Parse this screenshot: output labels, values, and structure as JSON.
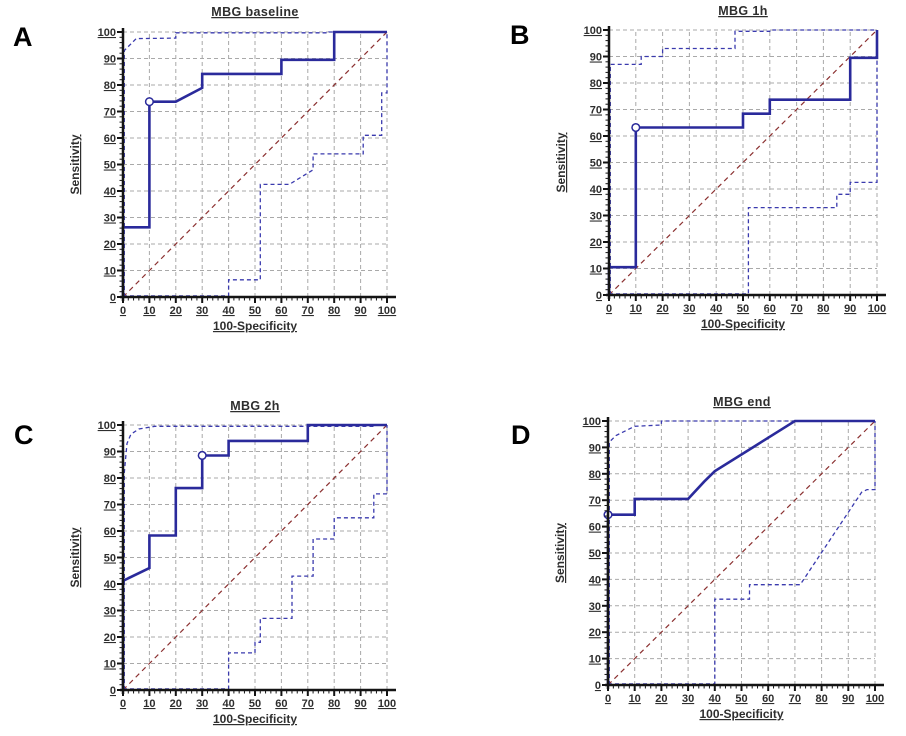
{
  "figure": {
    "type": "roc-curve-grid",
    "description": "Four ROC curve panels with 95% confidence bands and chance diagonal",
    "panel_letters": [
      "A",
      "B",
      "C",
      "D"
    ]
  },
  "axes": {
    "x_label": "100-Specificity",
    "y_label": "Sensitivity",
    "min": 0,
    "max": 100,
    "major_step": 10,
    "minor_step": 2,
    "tick_labels": [
      "0",
      "10",
      "20",
      "30",
      "40",
      "50",
      "60",
      "70",
      "80",
      "90",
      "100"
    ]
  },
  "palette": {
    "roc_curve": "#2A2A9B",
    "confidence_band": "#3A3AAE",
    "reference_line": "#8B3030",
    "grid_line": "#A9A9A9",
    "axis_line": "#141414",
    "text": "#2E2E2E",
    "marker_fill": "#FFFFFF"
  },
  "chart_data": [
    {
      "type": "line",
      "panel_label": "A",
      "title": "MBG baseline",
      "xlabel": "100-Specificity",
      "ylabel": "Sensitivity",
      "xlim": [
        0,
        100
      ],
      "ylim": [
        0,
        100
      ],
      "grid": true,
      "legend": "none",
      "series": [
        {
          "name": "Reference diagonal",
          "style": "dashed-red",
          "points": [
            [
              0,
              0
            ],
            [
              100,
              100
            ]
          ]
        },
        {
          "name": "95% CI upper bound",
          "style": "dashed",
          "points": [
            [
              0.5,
              0
            ],
            [
              0.5,
              93
            ],
            [
              5,
              97.5
            ],
            [
              20,
              97.7
            ],
            [
              20,
              99.7
            ],
            [
              78,
              99.7
            ],
            [
              78,
              100
            ],
            [
              100,
              100
            ]
          ]
        },
        {
          "name": "95% CI lower bound",
          "style": "dashed",
          "points": [
            [
              0,
              0.4
            ],
            [
              40,
              0.4
            ],
            [
              40,
              6.5
            ],
            [
              52,
              6.5
            ],
            [
              52,
              42.5
            ],
            [
              63,
              42.5
            ],
            [
              72,
              48
            ],
            [
              72,
              54
            ],
            [
              91,
              54
            ],
            [
              91,
              61
            ],
            [
              98,
              61
            ],
            [
              98,
              77
            ],
            [
              100,
              77
            ],
            [
              100,
              100
            ]
          ]
        },
        {
          "name": "ROC curve",
          "style": "solid",
          "points": [
            [
              0,
              0
            ],
            [
              0,
              26.3
            ],
            [
              10,
              26.3
            ],
            [
              10,
              73.7
            ],
            [
              20,
              73.7
            ],
            [
              30,
              78.9
            ],
            [
              30,
              84.2
            ],
            [
              60,
              84.2
            ],
            [
              60,
              89.5
            ],
            [
              80,
              89.5
            ],
            [
              80,
              100
            ],
            [
              100,
              100
            ]
          ]
        }
      ],
      "operating_point": [
        10,
        73.7
      ]
    },
    {
      "type": "line",
      "panel_label": "B",
      "title": "MBG 1h",
      "xlabel": "100-Specificity",
      "ylabel": "Sensitivity",
      "xlim": [
        0,
        100
      ],
      "ylim": [
        0,
        100
      ],
      "grid": true,
      "legend": "none",
      "series": [
        {
          "name": "Reference diagonal",
          "style": "dashed-red",
          "points": [
            [
              0,
              0
            ],
            [
              100,
              100
            ]
          ]
        },
        {
          "name": "95% CI upper bound",
          "style": "dashed",
          "points": [
            [
              0.5,
              0
            ],
            [
              0.5,
              87
            ],
            [
              12,
              87
            ],
            [
              12,
              90
            ],
            [
              20,
              90
            ],
            [
              20,
              93
            ],
            [
              47,
              93
            ],
            [
              47,
              99.5
            ],
            [
              60,
              99.5
            ],
            [
              60,
              100
            ],
            [
              100,
              100
            ]
          ]
        },
        {
          "name": "95% CI lower bound",
          "style": "dashed",
          "points": [
            [
              0,
              0.4
            ],
            [
              52,
              0.4
            ],
            [
              52,
              33
            ],
            [
              85,
              33
            ],
            [
              85,
              38
            ],
            [
              90,
              38
            ],
            [
              90,
              42.5
            ],
            [
              100,
              42.5
            ],
            [
              100,
              100
            ]
          ]
        },
        {
          "name": "ROC curve",
          "style": "solid",
          "points": [
            [
              0,
              0
            ],
            [
              0,
              10.5
            ],
            [
              10,
              10.5
            ],
            [
              10,
              63.2
            ],
            [
              50,
              63.2
            ],
            [
              50,
              68.4
            ],
            [
              60,
              68.4
            ],
            [
              60,
              73.7
            ],
            [
              90,
              73.7
            ],
            [
              90,
              89.5
            ],
            [
              100,
              89.5
            ],
            [
              100,
              100
            ]
          ]
        }
      ],
      "operating_point": [
        10,
        63.2
      ]
    },
    {
      "type": "line",
      "panel_label": "C",
      "title": "MBG 2h",
      "xlabel": "100-Specificity",
      "ylabel": "Sensitivity",
      "xlim": [
        0,
        100
      ],
      "ylim": [
        0,
        100
      ],
      "grid": true,
      "legend": "none",
      "series": [
        {
          "name": "Reference diagonal",
          "style": "dashed-red",
          "points": [
            [
              0,
              0
            ],
            [
              100,
              100
            ]
          ]
        },
        {
          "name": "95% CI upper bound",
          "style": "dashed",
          "points": [
            [
              0.5,
              0
            ],
            [
              0.5,
              82
            ],
            [
              1.5,
              93
            ],
            [
              3,
              96.5
            ],
            [
              6,
              98.5
            ],
            [
              12,
              99.5
            ],
            [
              95,
              99.5
            ],
            [
              95,
              100
            ],
            [
              100,
              100
            ]
          ]
        },
        {
          "name": "95% CI lower bound",
          "style": "dashed",
          "points": [
            [
              0,
              0.4
            ],
            [
              40,
              0.4
            ],
            [
              40,
              14
            ],
            [
              50,
              14
            ],
            [
              50,
              18
            ],
            [
              52,
              18
            ],
            [
              52,
              27
            ],
            [
              64,
              27
            ],
            [
              64,
              43
            ],
            [
              72,
              43
            ],
            [
              72,
              57
            ],
            [
              80,
              57
            ],
            [
              80,
              65
            ],
            [
              95,
              65
            ],
            [
              95,
              74
            ],
            [
              100,
              74
            ],
            [
              100,
              100
            ]
          ]
        },
        {
          "name": "ROC curve",
          "style": "solid",
          "points": [
            [
              0,
              0
            ],
            [
              0,
              41.2
            ],
            [
              10,
              46
            ],
            [
              10,
              58.3
            ],
            [
              20,
              58.3
            ],
            [
              20,
              76.2
            ],
            [
              30,
              76.2
            ],
            [
              30,
              88.5
            ],
            [
              40,
              88.5
            ],
            [
              40,
              94
            ],
            [
              70,
              94
            ],
            [
              70,
              100
            ],
            [
              100,
              100
            ]
          ]
        }
      ],
      "operating_point": [
        30,
        88.5
      ]
    },
    {
      "type": "line",
      "panel_label": "D",
      "title": "MBG end",
      "xlabel": "100-Specificity",
      "ylabel": "Sensitivity",
      "xlim": [
        0,
        100
      ],
      "ylim": [
        0,
        100
      ],
      "grid": true,
      "legend": "none",
      "series": [
        {
          "name": "Reference diagonal",
          "style": "dashed-red",
          "points": [
            [
              0,
              0
            ],
            [
              100,
              100
            ]
          ]
        },
        {
          "name": "95% CI upper bound",
          "style": "dashed",
          "points": [
            [
              0.5,
              0
            ],
            [
              0.5,
              92
            ],
            [
              3,
              94.5
            ],
            [
              10,
              98
            ],
            [
              20,
              98.5
            ],
            [
              20,
              100
            ],
            [
              100,
              100
            ]
          ]
        },
        {
          "name": "95% CI lower bound",
          "style": "dashed",
          "points": [
            [
              0,
              0.4
            ],
            [
              40,
              0.4
            ],
            [
              40,
              32.5
            ],
            [
              53,
              32.5
            ],
            [
              53,
              38
            ],
            [
              72,
              38
            ],
            [
              95,
              73
            ],
            [
              97,
              74
            ],
            [
              100,
              74
            ],
            [
              100,
              100
            ]
          ]
        },
        {
          "name": "ROC curve",
          "style": "solid",
          "points": [
            [
              0,
              0
            ],
            [
              0,
              64.5
            ],
            [
              10,
              64.5
            ],
            [
              10,
              70.5
            ],
            [
              30,
              70.5
            ],
            [
              36,
              77
            ],
            [
              40,
              81
            ],
            [
              55,
              90.5
            ],
            [
              70,
              100
            ],
            [
              100,
              100
            ]
          ]
        }
      ],
      "operating_point": [
        0,
        64.5
      ]
    }
  ]
}
